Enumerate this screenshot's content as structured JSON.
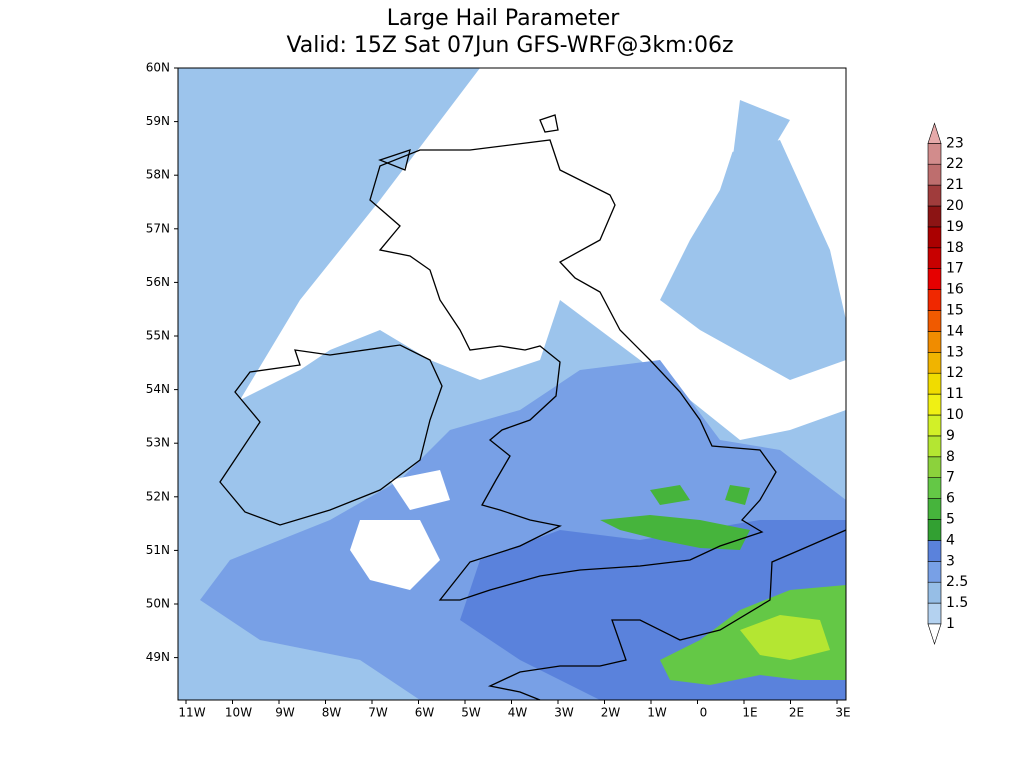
{
  "header": {
    "title": "Large Hail Parameter",
    "subtitle": "Valid: 15Z Sat 07Jun GFS-WRF@3km:06z"
  },
  "map": {
    "lat_labels": [
      "60N",
      "59N",
      "58N",
      "57N",
      "56N",
      "55N",
      "54N",
      "53N",
      "52N",
      "51N",
      "50N",
      "49N"
    ],
    "lon_labels": [
      "11W",
      "10W",
      "9W",
      "8W",
      "7W",
      "6W",
      "5W",
      "4W",
      "3W",
      "2W",
      "1W",
      "0",
      "1E",
      "2E",
      "3E"
    ]
  },
  "colorbar": {
    "levels": [
      1,
      1.5,
      2.5,
      3,
      4,
      5,
      6,
      7,
      8,
      9,
      10,
      11,
      12,
      13,
      14,
      15,
      16,
      17,
      18,
      19,
      20,
      21,
      22,
      23
    ],
    "colors": [
      "#b4d2f0",
      "#96bee6",
      "#78a0e6",
      "#5a82dc",
      "#32a032",
      "#46b43c",
      "#64c846",
      "#8cd23c",
      "#b4e632",
      "#d2f028",
      "#f0f014",
      "#f0dc00",
      "#f0b400",
      "#f08c00",
      "#f05a00",
      "#f02800",
      "#e60000",
      "#c80000",
      "#aa0000",
      "#8c1414",
      "#a03c3c",
      "#be6e6e",
      "#d28c8c"
    ],
    "under_color": "#ffffff",
    "over_color": "#e6aaaa"
  }
}
